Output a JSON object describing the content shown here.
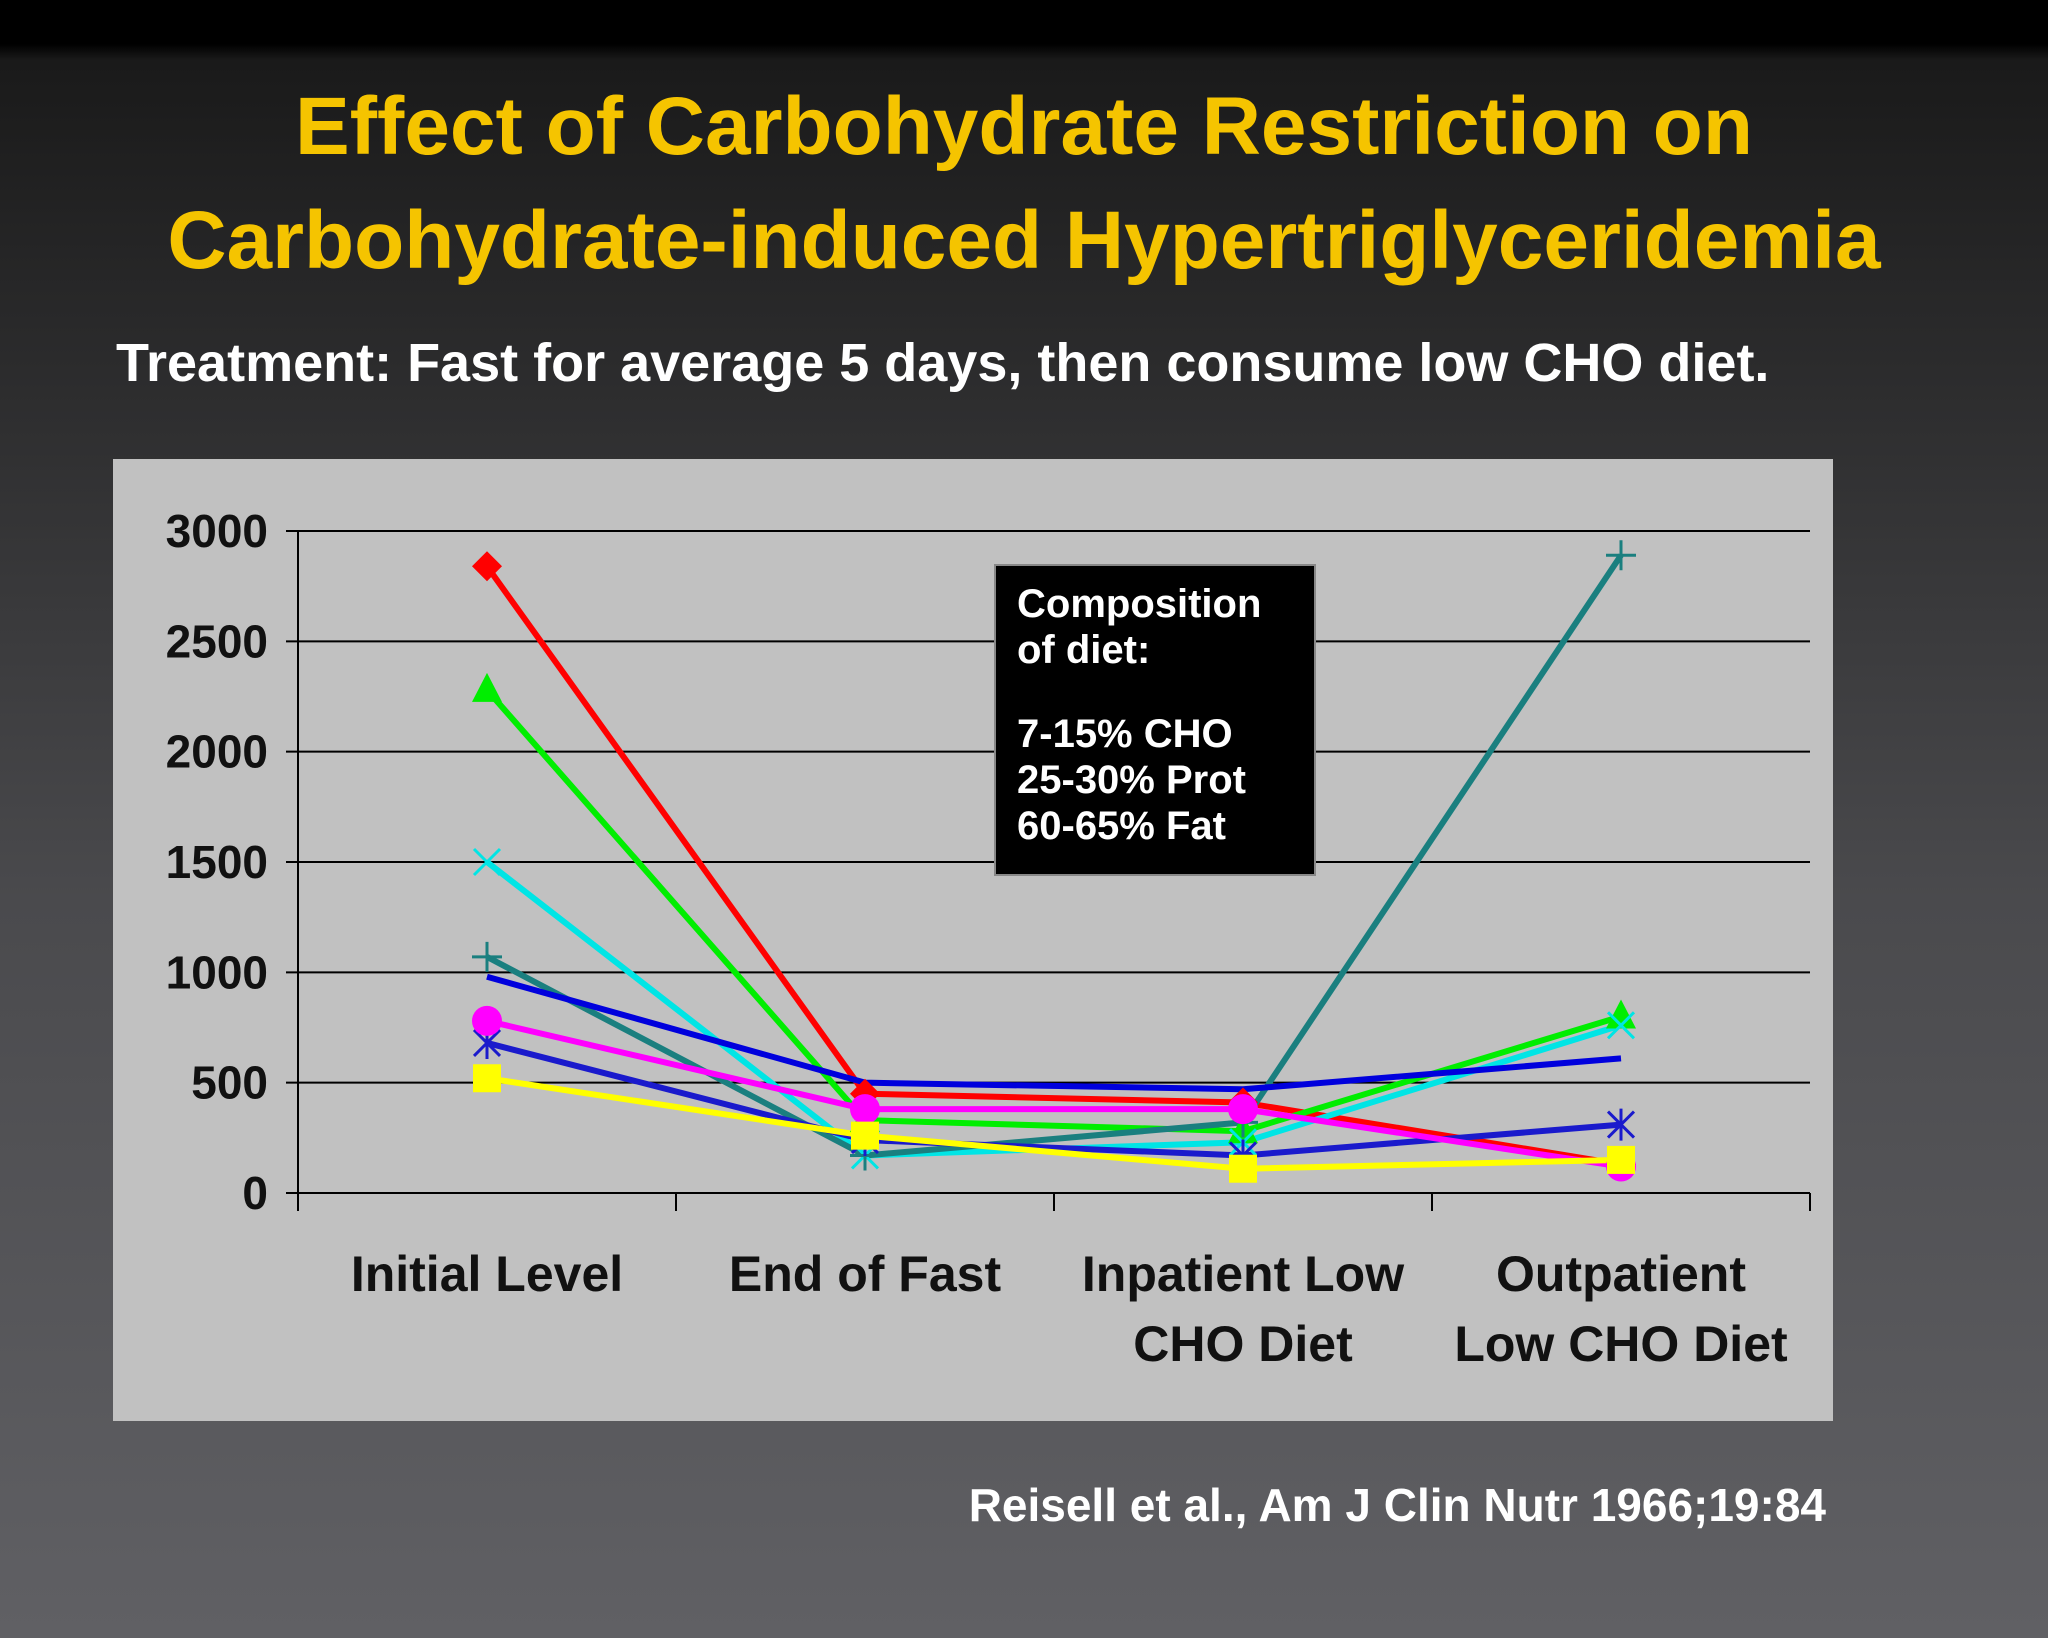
{
  "slide": {
    "title_line1": "Effect of Carbohydrate Restriction on",
    "title_line2": "Carbohydrate-induced Hypertriglyceridemia",
    "subtitle": "Treatment:  Fast for average 5 days, then consume low CHO diet.",
    "citation": "Reisell et al., Am J Clin Nutr 1966;19:84"
  },
  "chart_data": {
    "type": "line",
    "categories": [
      [
        "Initial Level"
      ],
      [
        "End of Fast"
      ],
      [
        "Inpatient Low",
        "CHO Diet"
      ],
      [
        "Outpatient",
        "Low CHO Diet"
      ]
    ],
    "ylim": [
      0,
      3000
    ],
    "yticks": [
      "0",
      "500",
      "1000",
      "1500",
      "2000",
      "2500",
      "3000"
    ],
    "grid": true,
    "legend": "none",
    "annotation": [
      "Composition",
      "of diet:",
      "",
      "7-15%   CHO",
      "25-30% Prot",
      "60-65% Fat"
    ],
    "series": [
      {
        "values": [
          2840,
          450,
          410,
          130
        ],
        "color": "#ff0000",
        "marker": "diamond"
      },
      {
        "values": [
          2280,
          330,
          280,
          800
        ],
        "color": "#00ee00",
        "marker": "triangle"
      },
      {
        "values": [
          1500,
          170,
          230,
          760
        ],
        "color": "#00e5e5",
        "marker": "x"
      },
      {
        "values": [
          1070,
          170,
          320,
          2890
        ],
        "color": "#1a7f7f",
        "marker": "plus"
      },
      {
        "values": [
          980,
          500,
          470,
          610
        ],
        "color": "#0000dd",
        "marker": "none"
      },
      {
        "values": [
          680,
          240,
          170,
          310
        ],
        "color": "#1a1acc",
        "marker": "star"
      },
      {
        "values": [
          780,
          380,
          380,
          120
        ],
        "color": "#ff00ff",
        "marker": "circle"
      },
      {
        "values": [
          520,
          260,
          110,
          150
        ],
        "color": "#ffff00",
        "marker": "square"
      }
    ]
  }
}
